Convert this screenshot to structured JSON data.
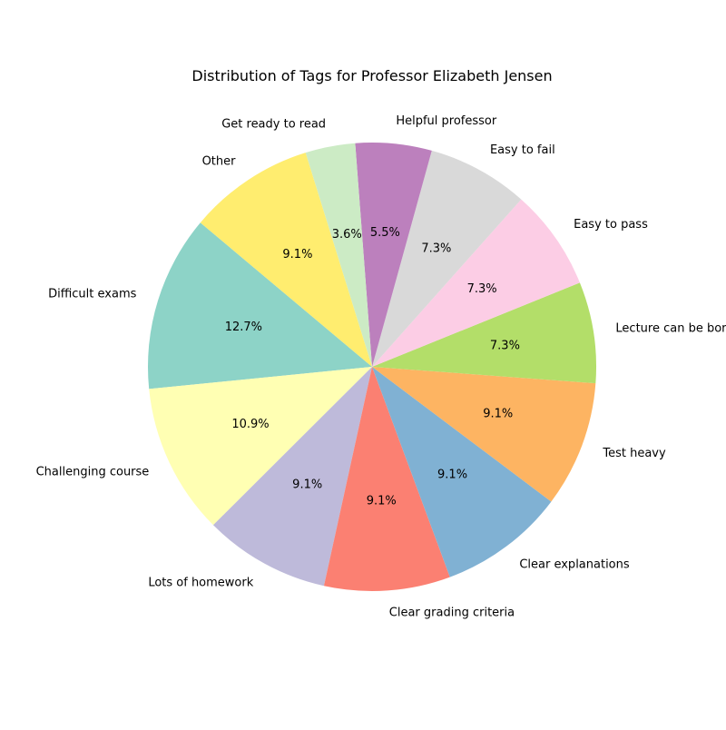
{
  "chart_data": {
    "type": "pie",
    "title": "Distribution of Tags for Professor Elizabeth Jensen",
    "start_angle_deg": 140,
    "direction": "counterclockwise",
    "slices": [
      {
        "label": "Difficult exams",
        "value": 12.7,
        "pct_text": "12.7%",
        "color": "#8dd3c7"
      },
      {
        "label": "Challenging course",
        "value": 10.9,
        "pct_text": "10.9%",
        "color": "#ffffb3"
      },
      {
        "label": "Lots of homework",
        "value": 9.1,
        "pct_text": "9.1%",
        "color": "#bebada"
      },
      {
        "label": "Clear grading criteria",
        "value": 9.1,
        "pct_text": "9.1%",
        "color": "#fb8072"
      },
      {
        "label": "Clear explanations",
        "value": 9.1,
        "pct_text": "9.1%",
        "color": "#80b1d3"
      },
      {
        "label": "Test heavy",
        "value": 9.1,
        "pct_text": "9.1%",
        "color": "#fdb462"
      },
      {
        "label": "Lecture can be boring",
        "value": 7.3,
        "pct_text": "7.3%",
        "color": "#b3de69"
      },
      {
        "label": "Easy to pass",
        "value": 7.3,
        "pct_text": "7.3%",
        "color": "#fccde5"
      },
      {
        "label": "Easy to fail",
        "value": 7.3,
        "pct_text": "7.3%",
        "color": "#d9d9d9"
      },
      {
        "label": "Helpful professor",
        "value": 5.5,
        "pct_text": "5.5%",
        "color": "#bc80bd"
      },
      {
        "label": "Get ready to read",
        "value": 3.6,
        "pct_text": "3.6%",
        "color": "#ccebc5"
      },
      {
        "label": "Other",
        "value": 9.1,
        "pct_text": "9.1%",
        "color": "#ffed6f"
      }
    ]
  }
}
